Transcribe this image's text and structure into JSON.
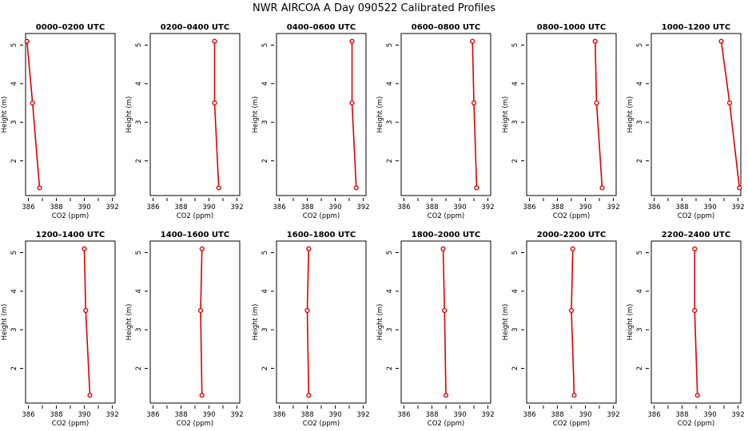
{
  "title": "NWR AIRCOA A  Day 090522  Calibrated Profiles",
  "colors": {
    "line": "#dd0000",
    "axis": "#000000"
  },
  "chart_data": {
    "type": "line",
    "layout": "2x6 panels",
    "shared": {
      "xlabel": "CO2 (ppm)",
      "ylabel": "Height (m)",
      "xlim": [
        385.8,
        392.2
      ],
      "ylim": [
        1.1,
        5.3
      ],
      "xticks": [
        386,
        388,
        390,
        392
      ],
      "xticks_minor": [
        387,
        389,
        391
      ],
      "yticks": [
        2,
        3,
        4,
        5
      ],
      "heights": [
        5.1,
        3.5,
        1.3
      ],
      "grid": false
    },
    "panels": [
      {
        "title": "0000–0200 UTC",
        "x": [
          385.9,
          386.3,
          386.8
        ]
      },
      {
        "title": "0200–0400 UTC",
        "x": [
          390.4,
          390.4,
          390.7
        ]
      },
      {
        "title": "0400–0600 UTC",
        "x": [
          391.2,
          391.2,
          391.5
        ]
      },
      {
        "title": "0600–0800 UTC",
        "x": [
          390.9,
          391.0,
          391.2
        ]
      },
      {
        "title": "0800–1000 UTC",
        "x": [
          390.7,
          390.8,
          391.2
        ]
      },
      {
        "title": "1000–1200 UTC",
        "x": [
          390.8,
          391.4,
          392.1
        ]
      },
      {
        "title": "1200–1400 UTC",
        "x": [
          390.0,
          390.1,
          390.4
        ]
      },
      {
        "title": "1400–1600 UTC",
        "x": [
          389.5,
          389.4,
          389.5
        ]
      },
      {
        "title": "1600–1800 UTC",
        "x": [
          388.1,
          388.0,
          388.1
        ]
      },
      {
        "title": "1800–2000 UTC",
        "x": [
          388.8,
          388.9,
          389.0
        ]
      },
      {
        "title": "2000–2200 UTC",
        "x": [
          389.1,
          389.0,
          389.2
        ]
      },
      {
        "title": "2200–2400 UTC",
        "x": [
          388.9,
          388.9,
          389.1
        ]
      }
    ]
  }
}
